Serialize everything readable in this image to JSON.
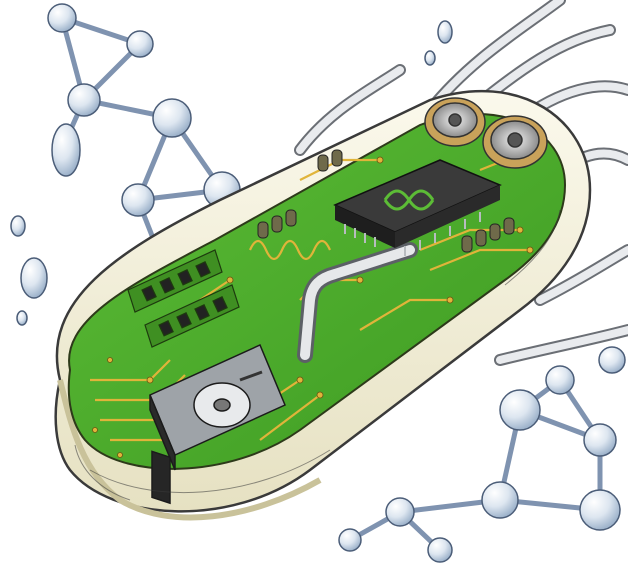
{
  "illustration": {
    "subject": "bacterium-circuit-board",
    "components": [
      "molecule-network",
      "flagella-cables",
      "circuit-board",
      "cpu-chip",
      "ram-modules",
      "hard-drive",
      "cooling-fans",
      "capacitors",
      "heat-pipe",
      "membrane-shell"
    ],
    "colors": {
      "background": "#ffffff",
      "board_green": "#4aa82a",
      "board_dark": "#2d7a1a",
      "trace_gold": "#e0b43a",
      "chip_black": "#262626",
      "metal_grey": "#b8bcc0",
      "glass_blue": "#b9cfe6",
      "membrane_cream": "#f4f0d8",
      "line_dark": "#3a3a3a"
    }
  }
}
